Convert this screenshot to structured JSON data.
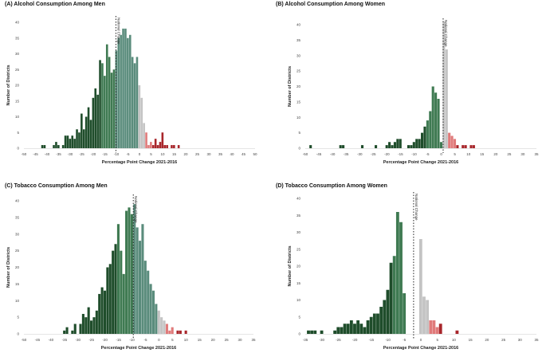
{
  "chart_data": [
    {
      "type": "bar",
      "title": "(A) Alcohol Consumption Among Men",
      "xlabel": "Percentage Point Change 2021-2016",
      "ylabel": "Number of Districts",
      "xlim": [
        -50,
        50
      ],
      "ylim": [
        0,
        40
      ],
      "xticks": [
        -50,
        -45,
        -40,
        -35,
        -30,
        -25,
        -20,
        -15,
        -10,
        -5,
        0,
        5,
        10,
        15,
        20,
        25,
        30,
        35,
        40,
        45,
        50
      ],
      "yticks": [
        0,
        5,
        10,
        15,
        20,
        25,
        30,
        35,
        40
      ],
      "bin_width": 1,
      "grid": false,
      "reference_line": {
        "x": -10.2,
        "label": "National Change"
      },
      "bins": [
        {
          "x": -42,
          "y": 1
        },
        {
          "x": -41,
          "y": 1
        },
        {
          "x": -37,
          "y": 1
        },
        {
          "x": -36,
          "y": 2
        },
        {
          "x": -35,
          "y": 1
        },
        {
          "x": -33,
          "y": 1
        },
        {
          "x": -32,
          "y": 4
        },
        {
          "x": -31,
          "y": 4
        },
        {
          "x": -30,
          "y": 3
        },
        {
          "x": -29,
          "y": 4
        },
        {
          "x": -28,
          "y": 3
        },
        {
          "x": -27,
          "y": 6
        },
        {
          "x": -26,
          "y": 5
        },
        {
          "x": -25,
          "y": 11
        },
        {
          "x": -24,
          "y": 6
        },
        {
          "x": -23,
          "y": 10
        },
        {
          "x": -22,
          "y": 13
        },
        {
          "x": -21,
          "y": 9
        },
        {
          "x": -20,
          "y": 16
        },
        {
          "x": -19,
          "y": 19
        },
        {
          "x": -18,
          "y": 17
        },
        {
          "x": -17,
          "y": 28
        },
        {
          "x": -16,
          "y": 27
        },
        {
          "x": -15,
          "y": 23
        },
        {
          "x": -14,
          "y": 33
        },
        {
          "x": -13,
          "y": 29
        },
        {
          "x": -12,
          "y": 24
        },
        {
          "x": -11,
          "y": 25
        },
        {
          "x": -10,
          "y": 31
        },
        {
          "x": -9,
          "y": 35
        },
        {
          "x": -8,
          "y": 36
        },
        {
          "x": -7,
          "y": 38
        },
        {
          "x": -6,
          "y": 38
        },
        {
          "x": -5,
          "y": 35
        },
        {
          "x": -4,
          "y": 36
        },
        {
          "x": -3,
          "y": 29
        },
        {
          "x": -2,
          "y": 27
        },
        {
          "x": -1,
          "y": 29
        },
        {
          "x": 0,
          "y": 20
        },
        {
          "x": 1,
          "y": 16
        },
        {
          "x": 2,
          "y": 8
        },
        {
          "x": 3,
          "y": 5
        },
        {
          "x": 4,
          "y": 1
        },
        {
          "x": 5,
          "y": 2
        },
        {
          "x": 6,
          "y": 1
        },
        {
          "x": 7,
          "y": 3
        },
        {
          "x": 8,
          "y": 1
        },
        {
          "x": 9,
          "y": 2
        },
        {
          "x": 10,
          "y": 5
        },
        {
          "x": 11,
          "y": 1
        },
        {
          "x": 12,
          "y": 1
        },
        {
          "x": 14,
          "y": 1
        },
        {
          "x": 15,
          "y": 1
        },
        {
          "x": 17,
          "y": 1
        }
      ]
    },
    {
      "type": "bar",
      "title": "(B) Alcohol Consumption Among Women",
      "xlabel": "Percentage Point Change 2021-2016",
      "ylabel": "Number of Districts",
      "xlim": [
        -50,
        35
      ],
      "ylim": [
        0,
        40
      ],
      "xticks": [
        -50,
        -45,
        -40,
        -35,
        -30,
        -25,
        -20,
        -15,
        -10,
        -5,
        0,
        5,
        10,
        15,
        20,
        25,
        30,
        35
      ],
      "yticks": [
        0,
        5,
        10,
        15,
        20,
        25,
        30,
        35,
        40
      ],
      "bin_width": 1,
      "grid": false,
      "reference_line": {
        "x": 0.7,
        "label": "National Change"
      },
      "bins": [
        {
          "x": -48,
          "y": 1
        },
        {
          "x": -37,
          "y": 1
        },
        {
          "x": -36,
          "y": 1
        },
        {
          "x": -29,
          "y": 1
        },
        {
          "x": -24,
          "y": 1
        },
        {
          "x": -20,
          "y": 1
        },
        {
          "x": -19,
          "y": 2
        },
        {
          "x": -18,
          "y": 1
        },
        {
          "x": -17,
          "y": 2
        },
        {
          "x": -16,
          "y": 3
        },
        {
          "x": -15,
          "y": 3
        },
        {
          "x": -12,
          "y": 1
        },
        {
          "x": -11,
          "y": 1
        },
        {
          "x": -10,
          "y": 2
        },
        {
          "x": -9,
          "y": 3
        },
        {
          "x": -8,
          "y": 3
        },
        {
          "x": -7,
          "y": 5
        },
        {
          "x": -6,
          "y": 7
        },
        {
          "x": -5,
          "y": 9
        },
        {
          "x": -4,
          "y": 12
        },
        {
          "x": -3,
          "y": 20
        },
        {
          "x": -2,
          "y": 18
        },
        {
          "x": -1,
          "y": 16
        },
        {
          "x": 0,
          "y": 2
        },
        {
          "x": 1,
          "y": 41
        },
        {
          "x": 2,
          "y": 32
        },
        {
          "x": 3,
          "y": 5
        },
        {
          "x": 4,
          "y": 4
        },
        {
          "x": 5,
          "y": 3
        },
        {
          "x": 6,
          "y": 1
        },
        {
          "x": 8,
          "y": 1
        },
        {
          "x": 9,
          "y": 1
        },
        {
          "x": 11,
          "y": 1
        },
        {
          "x": 12,
          "y": 1
        }
      ]
    },
    {
      "type": "bar",
      "title": "(C) Tobacco Consumption Among Men",
      "xlabel": "Percentage Point Change 2021-2016",
      "ylabel": "Number of Districts",
      "xlim": [
        -50,
        35
      ],
      "ylim": [
        0,
        40
      ],
      "xticks": [
        -50,
        -45,
        -40,
        -35,
        -30,
        -25,
        -20,
        -15,
        -10,
        -5,
        0,
        5,
        10,
        15,
        20,
        25,
        30,
        35
      ],
      "yticks": [
        0,
        5,
        10,
        15,
        20,
        25,
        30,
        35,
        40
      ],
      "bin_width": 1,
      "grid": false,
      "reference_line": {
        "x": -9.5,
        "label": "National Change"
      },
      "bins": [
        {
          "x": -35,
          "y": 1
        },
        {
          "x": -34,
          "y": 2
        },
        {
          "x": -32,
          "y": 1
        },
        {
          "x": -31,
          "y": 3
        },
        {
          "x": -29,
          "y": 3
        },
        {
          "x": -28,
          "y": 6
        },
        {
          "x": -27,
          "y": 5
        },
        {
          "x": -26,
          "y": 8
        },
        {
          "x": -25,
          "y": 4
        },
        {
          "x": -24,
          "y": 5
        },
        {
          "x": -23,
          "y": 7
        },
        {
          "x": -22,
          "y": 12
        },
        {
          "x": -21,
          "y": 14
        },
        {
          "x": -20,
          "y": 13
        },
        {
          "x": -19,
          "y": 20
        },
        {
          "x": -18,
          "y": 21
        },
        {
          "x": -17,
          "y": 25
        },
        {
          "x": -16,
          "y": 27
        },
        {
          "x": -15,
          "y": 33
        },
        {
          "x": -14,
          "y": 25
        },
        {
          "x": -13,
          "y": 18
        },
        {
          "x": -12,
          "y": 37
        },
        {
          "x": -11,
          "y": 38
        },
        {
          "x": -10,
          "y": 36
        },
        {
          "x": -9,
          "y": 39
        },
        {
          "x": -8,
          "y": 32
        },
        {
          "x": -7,
          "y": 28
        },
        {
          "x": -6,
          "y": 33
        },
        {
          "x": -5,
          "y": 22
        },
        {
          "x": -4,
          "y": 19
        },
        {
          "x": -3,
          "y": 15
        },
        {
          "x": -2,
          "y": 13
        },
        {
          "x": -1,
          "y": 9
        },
        {
          "x": 0,
          "y": 7
        },
        {
          "x": 1,
          "y": 5
        },
        {
          "x": 2,
          "y": 4
        },
        {
          "x": 3,
          "y": 3
        },
        {
          "x": 4,
          "y": 1
        },
        {
          "x": 5,
          "y": 2
        },
        {
          "x": 7,
          "y": 1
        },
        {
          "x": 8,
          "y": 1
        },
        {
          "x": 10,
          "y": 1
        }
      ]
    },
    {
      "type": "bar",
      "title": "(D) Tobacco Consumption Among Women",
      "xlabel": "Percentage Point Change 2021-2016",
      "ylabel": "Number of Districts",
      "xlim": [
        -35,
        35
      ],
      "ylim": [
        0,
        40
      ],
      "xticks": [
        -35,
        -30,
        -25,
        -20,
        -15,
        -10,
        -5,
        0,
        5,
        10,
        15,
        20,
        25,
        30,
        35
      ],
      "yticks": [
        0,
        5,
        10,
        15,
        20,
        25,
        30,
        35,
        40
      ],
      "bin_width": 1,
      "grid": false,
      "reference_line": {
        "x": -2.2,
        "label": "National Change"
      },
      "bins": [
        {
          "x": -34,
          "y": 1
        },
        {
          "x": -33,
          "y": 1
        },
        {
          "x": -32,
          "y": 1
        },
        {
          "x": -30,
          "y": 1
        },
        {
          "x": -26,
          "y": 1
        },
        {
          "x": -25,
          "y": 2
        },
        {
          "x": -24,
          "y": 2
        },
        {
          "x": -23,
          "y": 3
        },
        {
          "x": -22,
          "y": 3
        },
        {
          "x": -21,
          "y": 4
        },
        {
          "x": -20,
          "y": 3
        },
        {
          "x": -19,
          "y": 4
        },
        {
          "x": -18,
          "y": 3
        },
        {
          "x": -17,
          "y": 2
        },
        {
          "x": -16,
          "y": 4
        },
        {
          "x": -15,
          "y": 5
        },
        {
          "x": -14,
          "y": 6
        },
        {
          "x": -13,
          "y": 6
        },
        {
          "x": -12,
          "y": 8
        },
        {
          "x": -11,
          "y": 10
        },
        {
          "x": -10,
          "y": 13
        },
        {
          "x": -9,
          "y": 21
        },
        {
          "x": -8,
          "y": 23
        },
        {
          "x": -7,
          "y": 36
        },
        {
          "x": -6,
          "y": 33
        },
        {
          "x": -5,
          "y": 12
        },
        {
          "x": 0,
          "y": 28
        },
        {
          "x": 1,
          "y": 11
        },
        {
          "x": 2,
          "y": 10
        },
        {
          "x": 3,
          "y": 4
        },
        {
          "x": 4,
          "y": 4
        },
        {
          "x": 5,
          "y": 2
        },
        {
          "x": 6,
          "y": 3
        },
        {
          "x": 11,
          "y": 1
        }
      ]
    }
  ]
}
